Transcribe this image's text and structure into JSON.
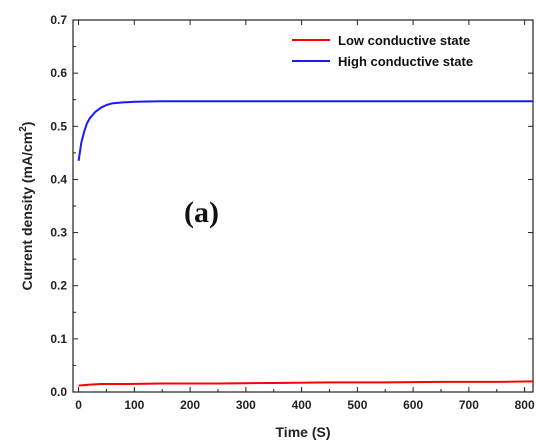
{
  "chart_data": {
    "type": "line",
    "xlabel": "Time (S)",
    "ylabel": "Current density (mA/cm",
    "ylabel_sup": "2",
    "ylabel_end": ")",
    "xlim": [
      -10,
      815
    ],
    "ylim": [
      0.0,
      0.7
    ],
    "x_ticks": [
      0,
      100,
      200,
      300,
      400,
      500,
      600,
      700,
      800
    ],
    "y_ticks": [
      "0.0",
      "0.1",
      "0.2",
      "0.3",
      "0.4",
      "0.5",
      "0.6",
      "0.7"
    ],
    "annotation": "(a)",
    "legend_position": "top-right",
    "series": [
      {
        "name": "Low conductive state",
        "color": "#ff0000",
        "x": [
          0,
          20,
          40,
          80,
          150,
          250,
          350,
          450,
          550,
          650,
          750,
          815
        ],
        "y": [
          0.012,
          0.014,
          0.015,
          0.015,
          0.016,
          0.016,
          0.017,
          0.018,
          0.018,
          0.019,
          0.019,
          0.02
        ]
      },
      {
        "name": "High conductive state",
        "color": "#1a1aff",
        "x": [
          0,
          5,
          10,
          15,
          20,
          30,
          40,
          50,
          60,
          80,
          100,
          150,
          200,
          300,
          400,
          500,
          600,
          700,
          815
        ],
        "y": [
          0.435,
          0.47,
          0.49,
          0.505,
          0.515,
          0.527,
          0.535,
          0.54,
          0.543,
          0.545,
          0.546,
          0.547,
          0.547,
          0.547,
          0.547,
          0.547,
          0.547,
          0.547,
          0.547
        ]
      }
    ]
  }
}
